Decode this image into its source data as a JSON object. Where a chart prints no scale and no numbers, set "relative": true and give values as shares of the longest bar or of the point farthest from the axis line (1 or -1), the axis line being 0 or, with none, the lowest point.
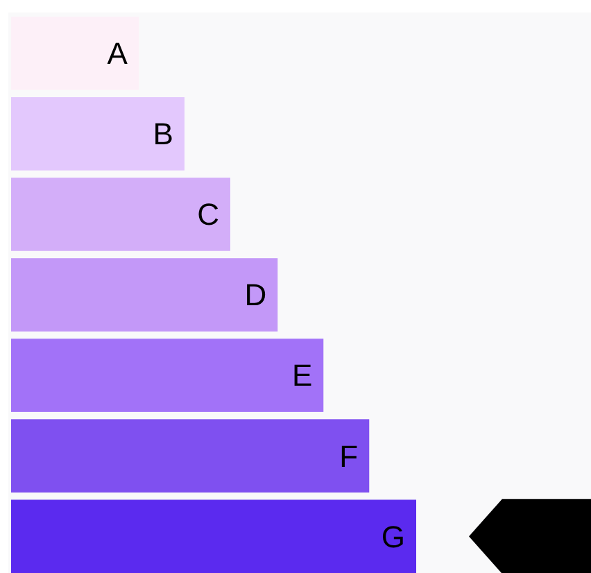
{
  "chart_data": {
    "type": "bar",
    "orientation": "horizontal",
    "relative": true,
    "categories": [
      "A",
      "B",
      "C",
      "D",
      "E",
      "F",
      "G"
    ],
    "values": [
      0.315,
      0.428,
      0.541,
      0.658,
      0.771,
      0.884,
      1
    ],
    "colors": [
      "#fdf0f8",
      "#e3c8fd",
      "#d3aef9",
      "#c398f8",
      "#a272f8",
      "#7f50f0",
      "#5b2aef"
    ]
  }
}
